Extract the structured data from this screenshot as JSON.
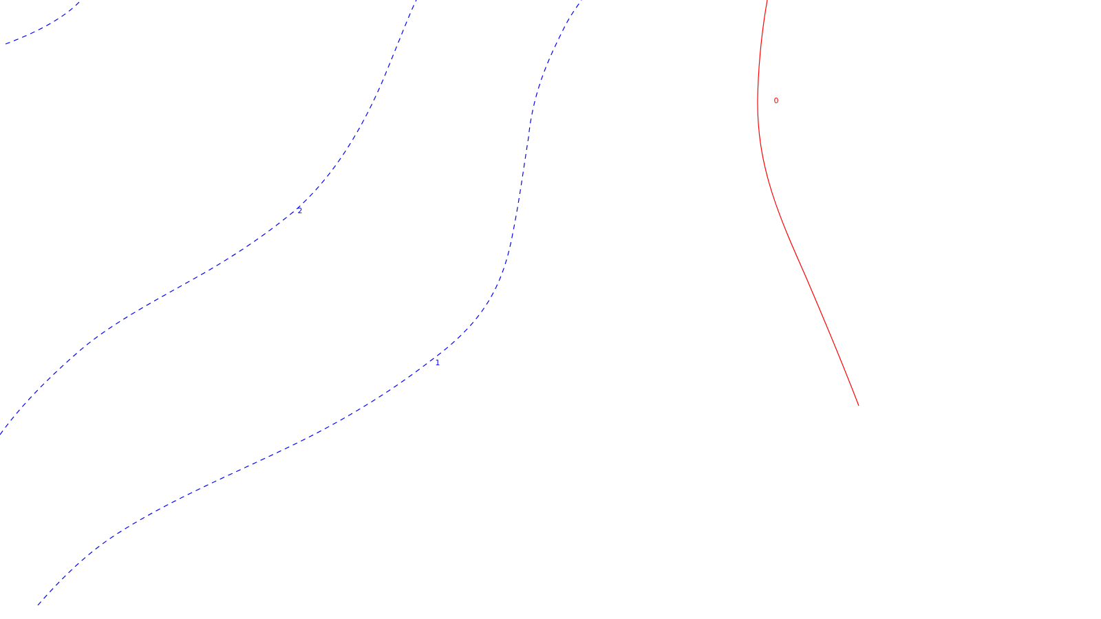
{
  "contours": [
    {
      "level": "2",
      "color": "#0000ff",
      "style": "dashed"
    },
    {
      "level": "1",
      "color": "#0000ff",
      "style": "dashed"
    },
    {
      "level": "0",
      "color": "#ff0000",
      "style": "solid"
    }
  ]
}
